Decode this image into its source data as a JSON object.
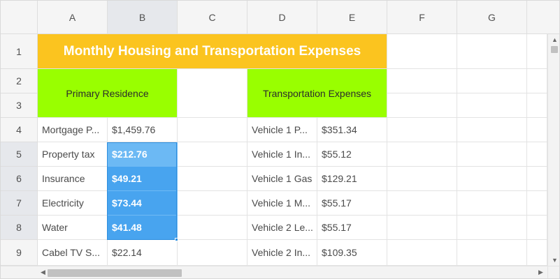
{
  "columns": [
    "A",
    "B",
    "C",
    "D",
    "E",
    "F",
    "G"
  ],
  "rows": [
    "1",
    "2",
    "3",
    "4",
    "5",
    "6",
    "7",
    "8",
    "9"
  ],
  "title": "Monthly Housing and Transportation Expenses",
  "section_primary": "Primary Residence",
  "section_transport": "Transportation Expenses",
  "housing": [
    {
      "label": "Mortgage P...",
      "value": "$1,459.76"
    },
    {
      "label": "Property tax",
      "value": "$212.76"
    },
    {
      "label": "Insurance",
      "value": "$49.21"
    },
    {
      "label": "Electricity",
      "value": "$73.44"
    },
    {
      "label": "Water",
      "value": "$41.48"
    },
    {
      "label": "Cabel TV S...",
      "value": "$22.14"
    }
  ],
  "transport": [
    {
      "label": "Vehicle 1 P...",
      "value": "$351.34"
    },
    {
      "label": "Vehicle 1 In...",
      "value": "$55.12"
    },
    {
      "label": "Vehicle 1 Gas",
      "value": "$129.21"
    },
    {
      "label": "Vehicle 1 M...",
      "value": "$55.17"
    },
    {
      "label": "Vehicle 2 Le...",
      "value": "$55.17"
    },
    {
      "label": "Vehicle 2 In...",
      "value": "$109.35"
    }
  ],
  "icons": {
    "scroll_up": "up-arrow-icon",
    "scroll_down": "down-arrow-icon",
    "scroll_left": "left-arrow-icon",
    "scroll_right": "right-arrow-icon"
  },
  "colors": {
    "title_bg": "#fbc41f",
    "section_bg": "#99ff00",
    "selection": "#48a4ef"
  }
}
